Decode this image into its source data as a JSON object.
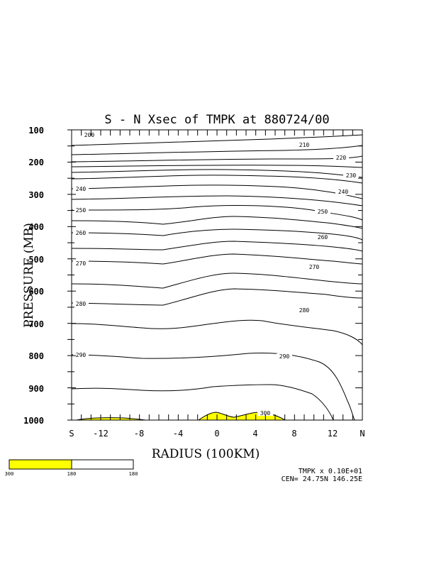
{
  "chart_data": {
    "type": "contour",
    "title": "S - N Xsec of TMPK at 880724/00",
    "xlabel": "RADIUS (100KM)",
    "ylabel": "PRESSURE (MB)",
    "x_ticks": [
      "S",
      "-12",
      "-8",
      "-4",
      "0",
      "4",
      "8",
      "12",
      "N"
    ],
    "y_ticks": [
      100,
      200,
      300,
      400,
      500,
      600,
      700,
      800,
      900,
      1000
    ],
    "ylim": [
      100,
      1000
    ],
    "xlim": [
      -15,
      15
    ],
    "contour_labels": [
      "200",
      "210",
      "220",
      "230",
      "240",
      "240",
      "250",
      "250",
      "260",
      "260",
      "270",
      "270",
      "280",
      "280",
      "290",
      "290",
      "300"
    ],
    "fill_color": "#ffff00",
    "colorbar": {
      "colors": [
        "#ffff00",
        "#ffffff"
      ],
      "labels": [
        "300",
        "180",
        "180"
      ]
    },
    "footer": {
      "scale": "TMPK x  0.10E+01",
      "center": "CEN= 24.75N  146.25E"
    }
  }
}
